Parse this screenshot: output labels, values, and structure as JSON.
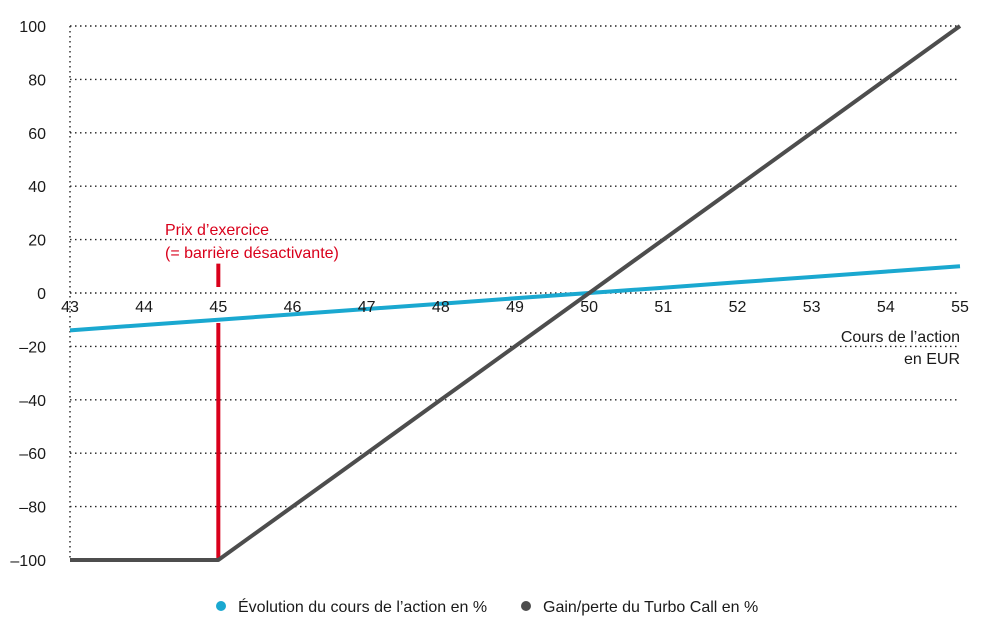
{
  "chart_data": {
    "type": "line",
    "x": [
      43,
      44,
      45,
      46,
      47,
      48,
      49,
      50,
      51,
      52,
      53,
      54,
      55
    ],
    "xlabel": [
      "Cours de l’action",
      "en EUR"
    ],
    "ylim": [
      -100,
      100
    ],
    "xlim": [
      43,
      55
    ],
    "x_ticks": [
      "43",
      "44",
      "45",
      "46",
      "47",
      "48",
      "49",
      "50",
      "51",
      "52",
      "53",
      "54",
      "55"
    ],
    "y_ticks": [
      "100",
      "80",
      "60",
      "40",
      "20",
      "0",
      "–20",
      "–40",
      "–60",
      "–80",
      "–100"
    ],
    "y_tick_values": [
      100,
      80,
      60,
      40,
      20,
      0,
      -20,
      -40,
      -60,
      -80,
      -100
    ],
    "grid": "horizontal-dotted",
    "legend_position": "bottom",
    "series": [
      {
        "name": "Évolution du cours de l’action en %",
        "color": "#1aa8d0",
        "values": [
          -14,
          -12,
          -10,
          -8,
          -6,
          -4,
          -2,
          0,
          2,
          4,
          6,
          8,
          10
        ]
      },
      {
        "name": "Gain/perte du Turbo Call en %",
        "color": "#4d4d4d",
        "values": [
          -100,
          -100,
          -100,
          -80,
          -60,
          -40,
          -20,
          0,
          20,
          40,
          60,
          80,
          100
        ]
      }
    ],
    "annotations": [
      {
        "x": 45,
        "color": "#d9001b",
        "lines": [
          "Prix d’exercice",
          "(= barrière désactivante)"
        ]
      }
    ]
  }
}
